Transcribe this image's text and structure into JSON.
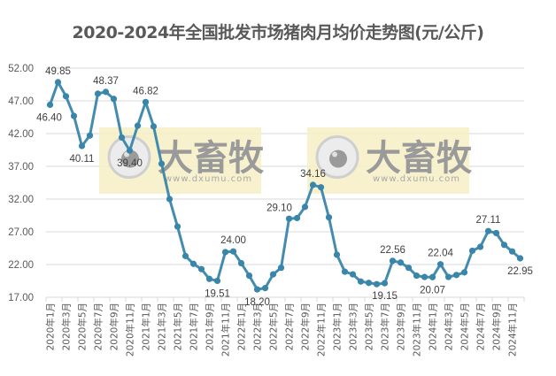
{
  "title": "2020-2024年全国批发市场猪肉月均价走势图(元/公斤)",
  "watermark": {
    "text": "大畜牧",
    "url": "www.dxumu.com",
    "bg_color": "#f6f0c4"
  },
  "colors": {
    "line": "#3a86ab",
    "grid": "#d9d9d9",
    "axis_text": "#595959"
  },
  "chart_data": {
    "type": "line",
    "title": "2020-2024年全国批发市场猪肉月均价走势图(元/公斤)",
    "xlabel": "",
    "ylabel": "",
    "ylim": [
      17,
      52
    ],
    "yticks": [
      "17.00",
      "22.00",
      "27.00",
      "32.00",
      "37.00",
      "42.00",
      "47.00",
      "52.00"
    ],
    "grid": true,
    "legend": "none",
    "x": [
      "2020年1月",
      "2020年2月",
      "2020年3月",
      "2020年4月",
      "2020年5月",
      "2020年6月",
      "2020年7月",
      "2020年8月",
      "2020年9月",
      "2020年10月",
      "2020年11月",
      "2020年12月",
      "2021年1月",
      "2021年2月",
      "2021年3月",
      "2021年4月",
      "2021年5月",
      "2021年6月",
      "2021年7月",
      "2021年8月",
      "2021年9月",
      "2021年10月",
      "2021年11月",
      "2021年12月",
      "2022年1月",
      "2022年2月",
      "2022年3月",
      "2022年4月",
      "2022年5月",
      "2022年6月",
      "2022年7月",
      "2022年8月",
      "2022年9月",
      "2022年10月",
      "2022年11月",
      "2022年12月",
      "2023年1月",
      "2023年2月",
      "2023年3月",
      "2023年4月",
      "2023年5月",
      "2023年6月",
      "2023年7月",
      "2023年8月",
      "2023年9月",
      "2023年10月",
      "2023年11月",
      "2023年12月",
      "2024年1月",
      "2024年2月",
      "2024年3月",
      "2024年4月",
      "2024年5月",
      "2024年6月",
      "2024年7月",
      "2024年8月",
      "2024年9月",
      "2024年10月",
      "2024年11月",
      "2024年12月"
    ],
    "xtick_labels": [
      "2020年1月",
      "2020年3月",
      "2020年5月",
      "2020年7月",
      "2020年9月",
      "2020年11月",
      "2021年1月",
      "2021年3月",
      "2021年5月",
      "2021年7月",
      "2021年9月",
      "2021年11月",
      "2022年1月",
      "2022年3月",
      "2022年5月",
      "2022年7月",
      "2022年9月",
      "2022年11月",
      "2023年1月",
      "2023年3月",
      "2023年5月",
      "2023年7月",
      "2023年9月",
      "2023年11月",
      "2024年1月",
      "2024年3月",
      "2024年5月",
      "2024年7月",
      "2024年9月",
      "2024年11月"
    ],
    "series": [
      {
        "name": "猪肉月均价",
        "values": [
          46.4,
          49.85,
          47.7,
          44.7,
          40.11,
          41.7,
          48.1,
          48.37,
          47.3,
          41.4,
          39.4,
          43.2,
          46.82,
          43.1,
          37.4,
          32.0,
          27.8,
          23.3,
          22.1,
          21.3,
          19.8,
          19.51,
          23.9,
          24.0,
          22.2,
          20.3,
          18.2,
          18.4,
          20.5,
          21.5,
          29.0,
          29.1,
          30.8,
          34.16,
          33.8,
          29.2,
          23.5,
          20.9,
          20.5,
          19.4,
          19.2,
          19.0,
          19.15,
          22.56,
          22.3,
          21.5,
          20.3,
          20.1,
          20.07,
          22.04,
          20.1,
          20.4,
          20.8,
          24.1,
          24.7,
          27.11,
          26.8,
          25.0,
          24.0,
          22.95
        ]
      }
    ],
    "annotations": [
      {
        "index": 0,
        "label": "46.40",
        "pos": "below"
      },
      {
        "index": 1,
        "label": "49.85",
        "pos": "above"
      },
      {
        "index": 4,
        "label": "40.11",
        "pos": "below"
      },
      {
        "index": 7,
        "label": "48.37",
        "pos": "above"
      },
      {
        "index": 10,
        "label": "39.40",
        "pos": "below"
      },
      {
        "index": 12,
        "label": "46.82",
        "pos": "above"
      },
      {
        "index": 21,
        "label": "19.51",
        "pos": "below"
      },
      {
        "index": 23,
        "label": "24.00",
        "pos": "above"
      },
      {
        "index": 26,
        "label": "18.20",
        "pos": "below"
      },
      {
        "index": 31,
        "label": "29.10",
        "pos": "above-left"
      },
      {
        "index": 33,
        "label": "34.16",
        "pos": "above"
      },
      {
        "index": 42,
        "label": "19.15",
        "pos": "below"
      },
      {
        "index": 43,
        "label": "22.56",
        "pos": "above"
      },
      {
        "index": 48,
        "label": "20.07",
        "pos": "below"
      },
      {
        "index": 49,
        "label": "22.04",
        "pos": "above"
      },
      {
        "index": 55,
        "label": "27.11",
        "pos": "above"
      },
      {
        "index": 59,
        "label": "22.95",
        "pos": "below"
      }
    ]
  }
}
